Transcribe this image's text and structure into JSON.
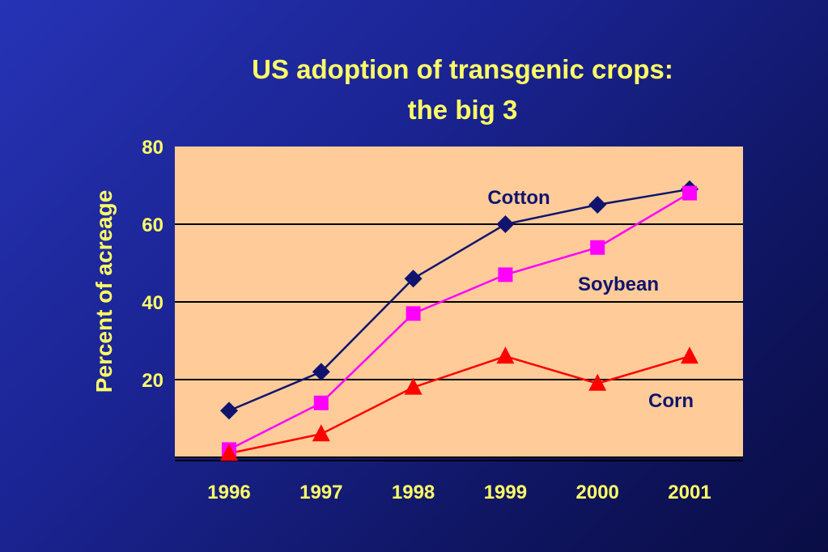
{
  "title_line1": "US adoption of transgenic crops:",
  "title_line2": "the big 3",
  "chart_data": {
    "type": "line",
    "title": "US adoption of transgenic crops: the big 3",
    "xlabel": "",
    "ylabel": "Percent of acreage",
    "categories": [
      "1996",
      "1997",
      "1998",
      "1999",
      "2000",
      "2001"
    ],
    "ylim": [
      0,
      80
    ],
    "yticks": [
      "20",
      "40",
      "60",
      "80"
    ],
    "grid": "horizontal at 20, 40, 60",
    "legend": "inline labels",
    "series": [
      {
        "name": "Cotton",
        "marker": "diamond",
        "color": "#10146e",
        "values": [
          12,
          22,
          46,
          60,
          65,
          69
        ]
      },
      {
        "name": "Soybean",
        "marker": "square",
        "color": "#ff00ff",
        "values": [
          2,
          14,
          37,
          47,
          54,
          68
        ]
      },
      {
        "name": "Corn",
        "marker": "triangle",
        "color": "#ff0000",
        "values": [
          1,
          6,
          18,
          26,
          19,
          26
        ]
      }
    ],
    "colors": {
      "plot_background": "#ffcc99",
      "text": "#ffff66",
      "label_text": "#10146e"
    }
  }
}
